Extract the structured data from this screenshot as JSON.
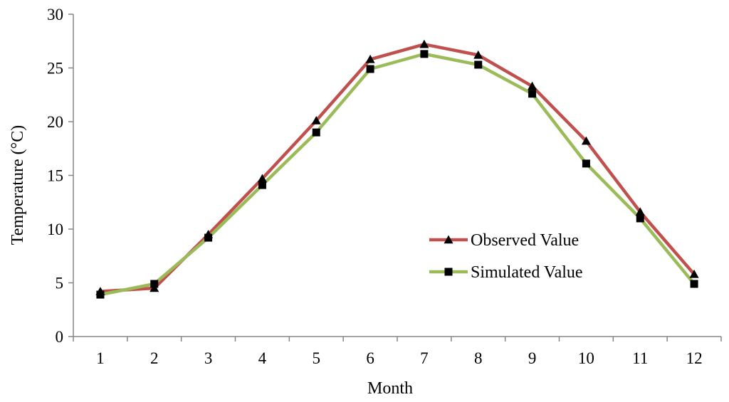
{
  "chart_data": {
    "type": "line",
    "title": "",
    "xlabel": "Month",
    "ylabel": "Temperature (°C)",
    "ylim": [
      0,
      30
    ],
    "yticks": [
      0,
      5,
      10,
      15,
      20,
      25,
      30
    ],
    "categories": [
      "1",
      "2",
      "3",
      "4",
      "5",
      "6",
      "7",
      "8",
      "9",
      "10",
      "11",
      "12"
    ],
    "grid": false,
    "legend_position": "center-right",
    "series": [
      {
        "name": "Observed Value",
        "color": "#C0504D",
        "marker": "triangle",
        "values": [
          4.2,
          4.5,
          9.5,
          14.7,
          20.1,
          25.8,
          27.2,
          26.2,
          23.3,
          18.2,
          11.6,
          5.8
        ]
      },
      {
        "name": "Simulated Value",
        "color": "#9BBB59",
        "marker": "square",
        "values": [
          3.9,
          4.9,
          9.2,
          14.1,
          19.0,
          24.9,
          26.3,
          25.3,
          22.6,
          16.1,
          11.0,
          4.9
        ]
      }
    ]
  }
}
